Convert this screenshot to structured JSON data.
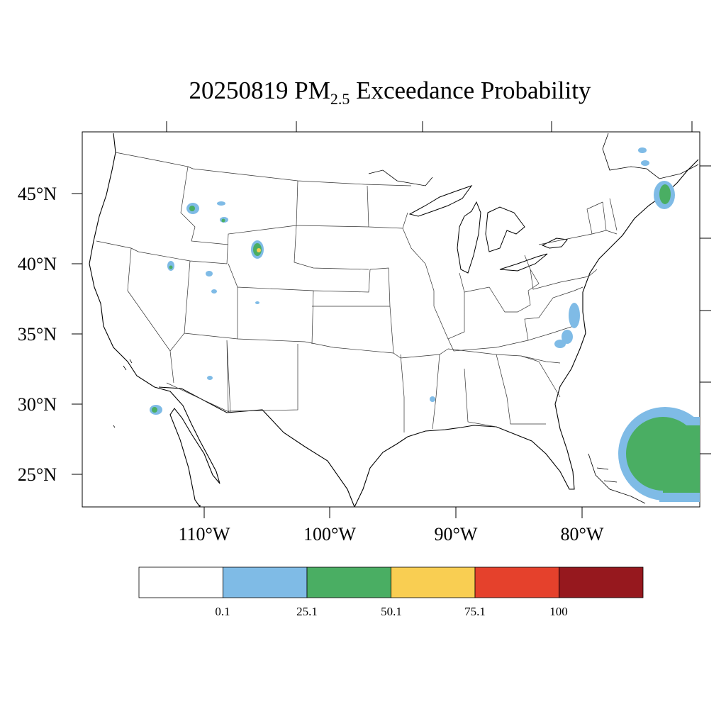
{
  "title": {
    "date": "20250819",
    "species": "PM",
    "species_sub": "2.5",
    "rest": "Exceedance Probability"
  },
  "lat_labels": [
    "45°N",
    "40°N",
    "35°N",
    "30°N",
    "25°N"
  ],
  "lon_labels": [
    "110°W",
    "100°W",
    "90°W",
    "80°W"
  ],
  "colorbar": {
    "bins": [
      {
        "color": "#ffffff"
      },
      {
        "color": "#7fbbe6"
      },
      {
        "color": "#4aae63"
      },
      {
        "color": "#f9ce52"
      },
      {
        "color": "#e5412c"
      },
      {
        "color": "#96181e"
      }
    ],
    "labels": [
      "0.1",
      "25.1",
      "50.1",
      "75.1",
      "100"
    ]
  }
}
